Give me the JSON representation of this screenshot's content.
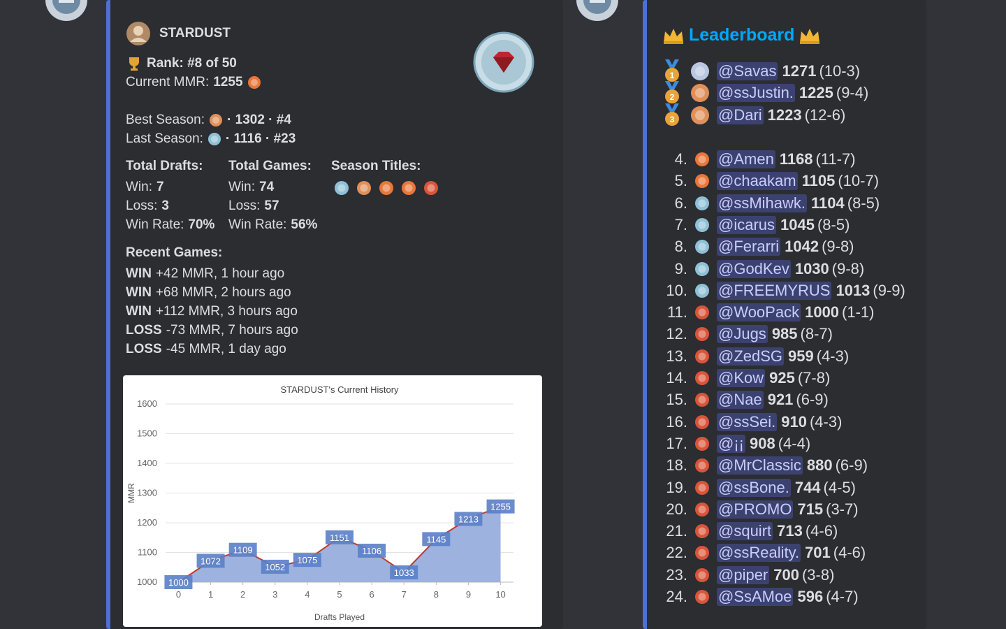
{
  "profile": {
    "name": "STARDUST",
    "rank": "Rank: #8 of 50",
    "current_mmr_label": "Current MMR:",
    "current_mmr": "1255",
    "best_season_label": "Best Season:",
    "best_season": "· 1302 · #4",
    "last_season_label": "Last Season:",
    "last_season": "· 1116 · #23",
    "stats": [
      {
        "heading": "Total Drafts:",
        "rows": [
          [
            "Win:",
            "7"
          ],
          [
            "Loss:",
            "3"
          ],
          [
            "Win Rate:",
            "70%"
          ]
        ]
      },
      {
        "heading": "Total Games:",
        "rows": [
          [
            "Win:",
            "74"
          ],
          [
            "Loss:",
            "57"
          ],
          [
            "Win Rate:",
            "56%"
          ]
        ]
      }
    ],
    "season_titles_heading": "Season Titles:",
    "season_title_colors": [
      "#8fc1d6",
      "#e0905a",
      "#e8773a",
      "#e8773a",
      "#d9553a"
    ],
    "recent_games_heading": "Recent Games:",
    "recent_games": [
      {
        "result": "WIN",
        "detail": "+42 MMR, 1 hour ago"
      },
      {
        "result": "WIN",
        "detail": "+68 MMR, 2 hours ago"
      },
      {
        "result": "WIN",
        "detail": "+112 MMR, 3 hours ago"
      },
      {
        "result": "LOSS",
        "detail": "-73 MMR, 7 hours ago"
      },
      {
        "result": "LOSS",
        "detail": "-45 MMR, 1 day ago"
      }
    ]
  },
  "chart_data": {
    "type": "area",
    "title": "STARDUST's Current History",
    "x_label": "Drafts Played",
    "y_label": "MMR",
    "x": [
      0,
      1,
      2,
      3,
      4,
      5,
      6,
      7,
      8,
      9,
      10
    ],
    "values": [
      1000,
      1072,
      1109,
      1052,
      1075,
      1151,
      1106,
      1033,
      1145,
      1213,
      1255
    ],
    "xlim": [
      -0.4,
      10.4
    ],
    "xticks": [
      0,
      1,
      2,
      3,
      4,
      5,
      6,
      7,
      8,
      9,
      10
    ],
    "ylim": [
      1000,
      1600
    ],
    "yticks": [
      1000,
      1100,
      1200,
      1300,
      1400,
      1500,
      1600
    ],
    "grid": true,
    "line_color": "#c0392b",
    "fill_color": "#9db2de",
    "label_color": "#5b7fc7"
  },
  "leaderboard": {
    "title": "Leaderboard",
    "entries": [
      {
        "medal": "1",
        "icon": "#b9c7e0",
        "name": "@Savas",
        "mmr": "1271",
        "record": "(10-3)"
      },
      {
        "medal": "2",
        "icon": "#e0905a",
        "name": "@ssJustin.",
        "mmr": "1225",
        "record": "(9-4)"
      },
      {
        "medal": "3",
        "icon": "#e0905a",
        "name": "@Dari",
        "mmr": "1223",
        "record": "(12-6)"
      },
      {
        "rank": "4.",
        "icon": "#e8773a",
        "name": "@Amen",
        "mmr": "1168",
        "record": "(11-7)"
      },
      {
        "rank": "5.",
        "icon": "#e8773a",
        "name": "@chaakam",
        "mmr": "1105",
        "record": "(10-7)"
      },
      {
        "rank": "6.",
        "icon": "#8fc1d6",
        "name": "@ssMihawk.",
        "mmr": "1104",
        "record": "(8-5)"
      },
      {
        "rank": "7.",
        "icon": "#8fc1d6",
        "name": "@icarus",
        "mmr": "1045",
        "record": "(8-5)"
      },
      {
        "rank": "8.",
        "icon": "#8fc1d6",
        "name": "@Ferarri",
        "mmr": "1042",
        "record": "(9-8)"
      },
      {
        "rank": "9.",
        "icon": "#8fc1d6",
        "name": "@GodKev",
        "mmr": "1030",
        "record": "(9-8)"
      },
      {
        "rank": "10.",
        "icon": "#8fc1d6",
        "name": "@FREEMYRUS",
        "mmr": "1013",
        "record": "(9-9)"
      },
      {
        "rank": "11.",
        "icon": "#d9553a",
        "name": "@WooPack",
        "mmr": "1000",
        "record": "(1-1)"
      },
      {
        "rank": "12.",
        "icon": "#d9553a",
        "name": "@Jugs",
        "mmr": "985",
        "record": "(8-7)"
      },
      {
        "rank": "13.",
        "icon": "#d9553a",
        "name": "@ZedSG",
        "mmr": "959",
        "record": "(4-3)"
      },
      {
        "rank": "14.",
        "icon": "#d9553a",
        "name": "@Kow",
        "mmr": "925",
        "record": "(7-8)"
      },
      {
        "rank": "15.",
        "icon": "#d9553a",
        "name": "@Nae",
        "mmr": "921",
        "record": "(6-9)"
      },
      {
        "rank": "16.",
        "icon": "#d9553a",
        "name": "@ssSei.",
        "mmr": "910",
        "record": "(4-3)"
      },
      {
        "rank": "17.",
        "icon": "#d9553a",
        "name": "@¡¡",
        "mmr": "908",
        "record": "(4-4)"
      },
      {
        "rank": "18.",
        "icon": "#d9553a",
        "name": "@MrClassic",
        "mmr": "880",
        "record": "(6-9)"
      },
      {
        "rank": "19.",
        "icon": "#d9553a",
        "name": "@ssBone.",
        "mmr": "744",
        "record": "(4-5)"
      },
      {
        "rank": "20.",
        "icon": "#d9553a",
        "name": "@PROMO",
        "mmr": "715",
        "record": "(3-7)"
      },
      {
        "rank": "21.",
        "icon": "#d9553a",
        "name": "@squirt",
        "mmr": "713",
        "record": "(4-6)"
      },
      {
        "rank": "22.",
        "icon": "#d9553a",
        "name": "@ssReality.",
        "mmr": "701",
        "record": "(4-6)"
      },
      {
        "rank": "23.",
        "icon": "#d9553a",
        "name": "@piper",
        "mmr": "700",
        "record": "(3-8)"
      },
      {
        "rank": "24.",
        "icon": "#d9553a",
        "name": "@SsAMoe",
        "mmr": "596",
        "record": "(4-7)"
      }
    ]
  }
}
